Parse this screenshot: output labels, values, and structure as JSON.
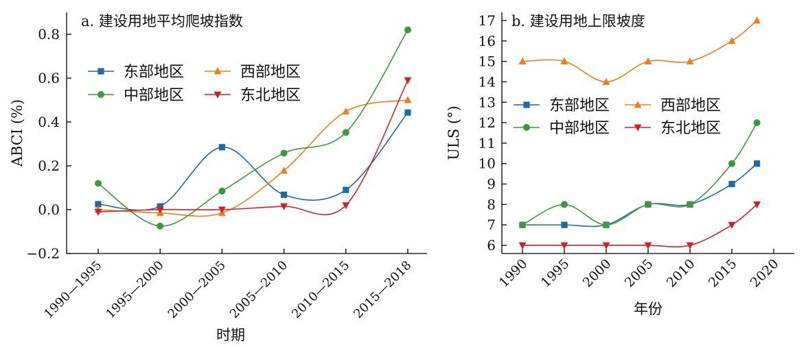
{
  "chart_data": [
    {
      "type": "line",
      "title": "a. 建设用地平均爬坡指数",
      "xlabel": "时期",
      "ylabel": "ABCI (%)",
      "categories": [
        "1990—1995",
        "1995—2000",
        "2000—2005",
        "2005—2010",
        "2010—2015",
        "2015—2018"
      ],
      "ylim": [
        -0.2,
        0.9
      ],
      "yticks": [
        -0.2,
        0.0,
        0.2,
        0.4,
        0.6,
        0.8
      ],
      "ytick_labels": [
        "−0.2",
        "0.0",
        "0.2",
        "0.4",
        "0.6",
        "0.8"
      ],
      "legend_position": "upper-left",
      "grid": false,
      "series": [
        {
          "name": "东部地区",
          "color": "#1f6aa5",
          "marker": "square",
          "values": [
            0.025,
            0.015,
            0.285,
            0.068,
            0.09,
            0.443
          ]
        },
        {
          "name": "西部地区",
          "color": "#f07d1a",
          "marker": "triangle-up",
          "values": [
            0.0,
            -0.015,
            -0.015,
            0.178,
            0.448,
            0.5
          ]
        },
        {
          "name": "中部地区",
          "color": "#3c9a3c",
          "marker": "circle",
          "values": [
            0.12,
            -0.075,
            0.085,
            0.258,
            0.352,
            0.82
          ]
        },
        {
          "name": "东北地区",
          "color": "#d62020",
          "marker": "triangle-down",
          "values": [
            -0.01,
            0.0,
            0.0,
            0.015,
            0.02,
            0.59
          ]
        }
      ]
    },
    {
      "type": "line",
      "title": "b. 建设用地上限坡度",
      "xlabel": "年份",
      "ylabel": "ULS (°)",
      "xlim": [
        1988,
        2022
      ],
      "xticks": [
        1990,
        1995,
        2000,
        2005,
        2010,
        2015,
        2020
      ],
      "xtick_labels": [
        "1990",
        "1995",
        "2000",
        "2005",
        "2010",
        "2015",
        "2020"
      ],
      "ylim": [
        5.6,
        17.4
      ],
      "yticks": [
        6,
        7,
        8,
        9,
        10,
        11,
        12,
        13,
        14,
        15,
        16,
        17
      ],
      "ytick_labels": [
        "6",
        "7",
        "8",
        "9",
        "10",
        "11",
        "12",
        "13",
        "14",
        "15",
        "16",
        "17"
      ],
      "legend_position": "middle-left",
      "grid": false,
      "x": [
        1990,
        1995,
        2000,
        2005,
        2010,
        2015,
        2018
      ],
      "series": [
        {
          "name": "东部地区",
          "color": "#1f6aa5",
          "marker": "square",
          "values": [
            7,
            7,
            7,
            8,
            8,
            9,
            10
          ]
        },
        {
          "name": "西部地区",
          "color": "#f07d1a",
          "marker": "triangle-up",
          "values": [
            15,
            15,
            14,
            15,
            15,
            16,
            17
          ]
        },
        {
          "name": "中部地区",
          "color": "#3c9a3c",
          "marker": "circle",
          "values": [
            7,
            8,
            7,
            8,
            8,
            10,
            12
          ]
        },
        {
          "name": "东北地区",
          "color": "#d62020",
          "marker": "triangle-down",
          "values": [
            6,
            6,
            6,
            6,
            6,
            7,
            8
          ]
        }
      ]
    }
  ]
}
